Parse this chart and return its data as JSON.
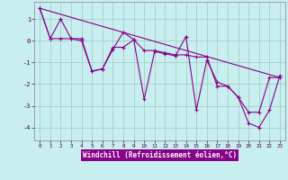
{
  "xlabel": "Windchill (Refroidissement éolien,°C)",
  "bg_color": "#c8eef0",
  "label_bg_color": "#880088",
  "grid_color": "#99ccbb",
  "line_color": "#880088",
  "xlim": [
    -0.5,
    23.5
  ],
  "ylim": [
    -4.6,
    1.8
  ],
  "xticks": [
    0,
    1,
    2,
    3,
    4,
    5,
    6,
    7,
    8,
    9,
    10,
    11,
    12,
    13,
    14,
    15,
    16,
    17,
    18,
    19,
    20,
    21,
    22,
    23
  ],
  "yticks": [
    -4,
    -3,
    -2,
    -1,
    0,
    1
  ],
  "line1_x": [
    0,
    1,
    2,
    3,
    4,
    5,
    6,
    7,
    8,
    9,
    10,
    11,
    12,
    13,
    14,
    15,
    16,
    17,
    18,
    19,
    20,
    21,
    22,
    23
  ],
  "line1_y": [
    1.5,
    0.1,
    1.0,
    0.1,
    0.1,
    -1.4,
    -1.3,
    -0.4,
    0.4,
    0.05,
    -2.7,
    -0.5,
    -0.6,
    -0.7,
    0.2,
    -3.2,
    -0.9,
    -1.9,
    -2.1,
    -2.6,
    -3.8,
    -4.0,
    -3.2,
    -1.6
  ],
  "line2_x": [
    0,
    1,
    2,
    3,
    4,
    5,
    6,
    7,
    8,
    9,
    10,
    11,
    12,
    13,
    14,
    15,
    16,
    17,
    18,
    19,
    20,
    21,
    22,
    23
  ],
  "line2_y": [
    1.5,
    0.1,
    0.1,
    0.1,
    0.0,
    -1.4,
    -1.3,
    -0.3,
    -0.3,
    0.05,
    -0.45,
    -0.45,
    -0.55,
    -0.65,
    -0.65,
    -0.75,
    -0.75,
    -2.1,
    -2.1,
    -2.6,
    -3.3,
    -3.3,
    -1.7,
    -1.7
  ],
  "line3_x": [
    0,
    23
  ],
  "line3_y": [
    1.5,
    -1.7
  ]
}
